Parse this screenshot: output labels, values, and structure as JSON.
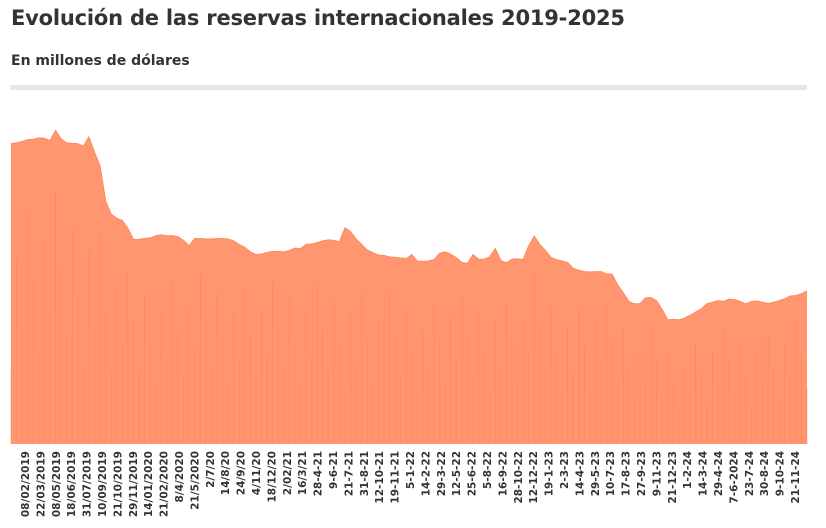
{
  "title": "Evolución de las reservas internacionales 2019-2025",
  "subtitle": "En millones de dólares",
  "colors": {
    "area": "#ff9670",
    "area_dark": "#ff7a45",
    "text": "#333333",
    "divider": "#e6e6e6"
  },
  "chart_data": {
    "type": "area",
    "title": "Evolución de las reservas internacionales 2019-2025",
    "subtitle": "En millones de dólares",
    "xlabel": "",
    "ylabel": "",
    "grid": false,
    "legend": "none",
    "y_axis_shown": false,
    "y_relative_scale_note_free": true,
    "x_tick_labels": [
      "08/02/2019",
      "22/03/2019",
      "08/05/2019",
      "18/06/2019",
      "31/07/2019",
      "10/09/2019",
      "21/10/2019",
      "29/11/2019",
      "14/01/2020",
      "21/02/2020",
      "8/4/2020",
      "21/5/2020",
      "2/7/20",
      "14/8/20",
      "24/9/20",
      "4/11/20",
      "18/12/20",
      "2/02/21",
      "16/3/21",
      "28-4-21",
      "9-6-21",
      "21-7-21",
      "31-8-21",
      "12-10-21",
      "19-11-21",
      "5-1-22",
      "14-2-22",
      "29-3-22",
      "12-5-22",
      "25-6-22",
      "5-8-22",
      "16-9-22",
      "28-10-22",
      "12-12-22",
      "19-1-23",
      "2-3-23",
      "14-4-23",
      "29-5-23",
      "10-7-23",
      "17-8-23",
      "27-9-23",
      "9-11-23",
      "21-12-23",
      "1-2-24",
      "14-3-24",
      "29-4-24",
      "7-6-2024",
      "23-7-24",
      "30-8-24",
      "9-10-24",
      "21-11-24"
    ],
    "series": [
      {
        "values": [
          65300,
          65500,
          65800,
          66200,
          66300,
          66600,
          66500,
          66000,
          68200,
          66400,
          65500,
          65400,
          65300,
          64800,
          66800,
          63500,
          60500,
          52900,
          50000,
          49100,
          48600,
          46900,
          44500,
          44500,
          44700,
          44800,
          45300,
          45500,
          45300,
          45300,
          45100,
          44300,
          43100,
          44700,
          44700,
          44600,
          44600,
          44700,
          44700,
          44600,
          44200,
          43400,
          42800,
          41800,
          41200,
          41300,
          41700,
          41900,
          41900,
          41800,
          42100,
          42600,
          42500,
          43400,
          43500,
          43800,
          44200,
          44400,
          44300,
          44000,
          47000,
          46200,
          44600,
          43400,
          42200,
          41600,
          41100,
          41000,
          40700,
          40600,
          40500,
          40300,
          41200,
          39800,
          39700,
          39800,
          40100,
          41500,
          41800,
          41300,
          40500,
          39500,
          39300,
          41200,
          40200,
          40200,
          40700,
          42500,
          39900,
          39400,
          40200,
          40300,
          40100,
          43100,
          45200,
          43400,
          42100,
          40600,
          40100,
          39800,
          39500,
          38200,
          37800,
          37500,
          37400,
          37500,
          37500,
          37000,
          36900,
          34600,
          32900,
          31000,
          30500,
          30500,
          31800,
          31900,
          31100,
          29200,
          27000,
          27100,
          27000,
          27400,
          28000,
          28700,
          29400,
          30500,
          30800,
          31200,
          31000,
          31500,
          31400,
          31000,
          30500,
          31000,
          31100,
          30800,
          30600,
          30800,
          31200,
          31600,
          32200,
          32300,
          32700,
          33300
        ]
      }
    ],
    "ylim": [
      0,
      72000
    ]
  }
}
